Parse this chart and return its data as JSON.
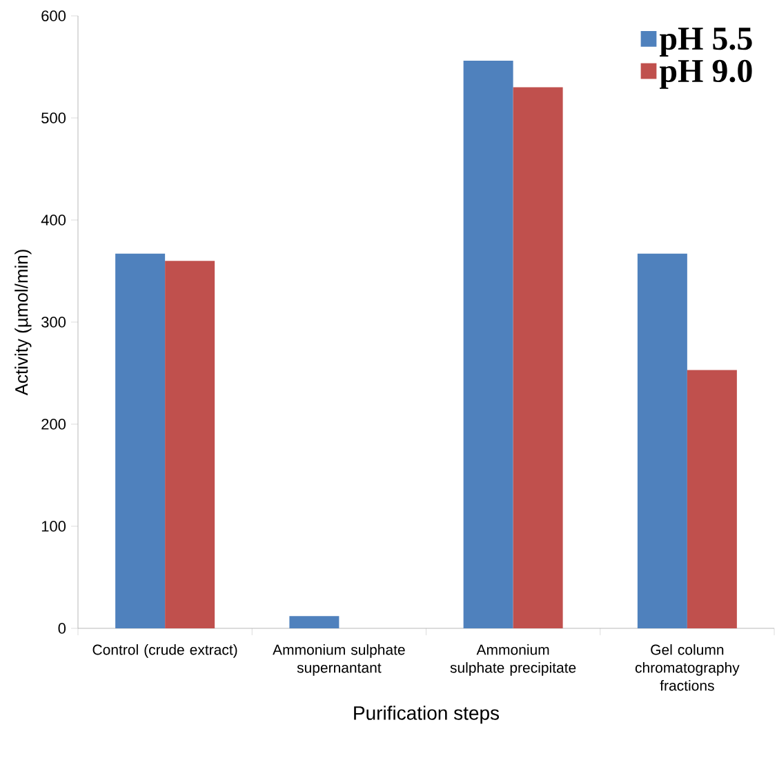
{
  "chart_data": {
    "type": "bar",
    "xlabel": "Purification steps",
    "ylabel": "Activity (µmol/min)",
    "categories": [
      "Control (crude extract)",
      "Ammonium sulphate supernantant",
      "Ammonium sulphate precipitate",
      "Gel column chromatography fractions"
    ],
    "series": [
      {
        "name": "pH 5.5",
        "color": "#4f81bd",
        "values": [
          367,
          12,
          556,
          367
        ]
      },
      {
        "name": "pH 9.0",
        "color": "#c0504d",
        "values": [
          360,
          0,
          530,
          253
        ]
      }
    ],
    "ylim": [
      0,
      600
    ],
    "yticks": [
      0,
      100,
      200,
      300,
      400,
      500,
      600
    ],
    "grid": false,
    "legend": "top right"
  }
}
